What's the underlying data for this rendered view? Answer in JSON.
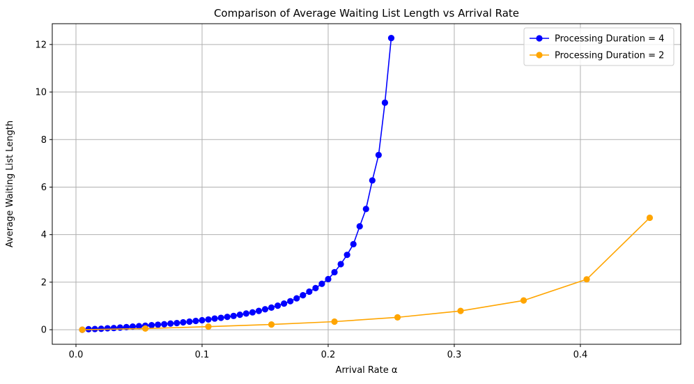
{
  "chart_data": {
    "type": "line",
    "title": "Comparison of Average Waiting List Length vs Arrival Rate",
    "xlabel": "Arrival Rate α",
    "ylabel": "Average Waiting List Length",
    "xlim": [
      -0.0188,
      0.4796
    ],
    "ylim": [
      -0.613,
      12.875
    ],
    "xticks": [
      0.0,
      0.1,
      0.2,
      0.3,
      0.4
    ],
    "xtick_labels": [
      "0.0",
      "0.1",
      "0.2",
      "0.3",
      "0.4"
    ],
    "yticks": [
      0,
      2,
      4,
      6,
      8,
      10,
      12
    ],
    "ytick_labels": [
      "0",
      "2",
      "4",
      "6",
      "8",
      "10",
      "12"
    ],
    "grid": true,
    "legend_position": "top-right",
    "series": [
      {
        "name": "Processing Duration = 4",
        "color": "#0000ff",
        "marker": "circle",
        "x": [
          0.005,
          0.01,
          0.015,
          0.02,
          0.025,
          0.03,
          0.035,
          0.04,
          0.045,
          0.05,
          0.055,
          0.06,
          0.065,
          0.07,
          0.075,
          0.08,
          0.085,
          0.09,
          0.095,
          0.1,
          0.105,
          0.11,
          0.115,
          0.12,
          0.125,
          0.13,
          0.135,
          0.14,
          0.145,
          0.15,
          0.155,
          0.16,
          0.165,
          0.17,
          0.175,
          0.18,
          0.185,
          0.19,
          0.195,
          0.2,
          0.205,
          0.21,
          0.215,
          0.22,
          0.225,
          0.23,
          0.235,
          0.24,
          0.245,
          0.25
        ],
        "y": [
          0.0,
          0.02,
          0.03,
          0.04,
          0.06,
          0.07,
          0.09,
          0.11,
          0.13,
          0.15,
          0.17,
          0.19,
          0.21,
          0.23,
          0.26,
          0.28,
          0.31,
          0.34,
          0.37,
          0.4,
          0.43,
          0.47,
          0.5,
          0.54,
          0.58,
          0.63,
          0.68,
          0.73,
          0.79,
          0.86,
          0.93,
          1.01,
          1.1,
          1.2,
          1.32,
          1.45,
          1.6,
          1.75,
          1.93,
          2.13,
          2.42,
          2.76,
          3.15,
          3.6,
          4.35,
          5.08,
          6.28,
          7.35,
          9.55,
          12.27
        ]
      },
      {
        "name": "Processing Duration = 2",
        "color": "#ffa500",
        "marker": "circle",
        "x": [
          0.005,
          0.055,
          0.105,
          0.155,
          0.205,
          0.255,
          0.305,
          0.355,
          0.405,
          0.455
        ],
        "y": [
          0.0,
          0.05,
          0.13,
          0.22,
          0.34,
          0.52,
          0.79,
          1.23,
          2.12,
          4.71
        ]
      }
    ]
  }
}
